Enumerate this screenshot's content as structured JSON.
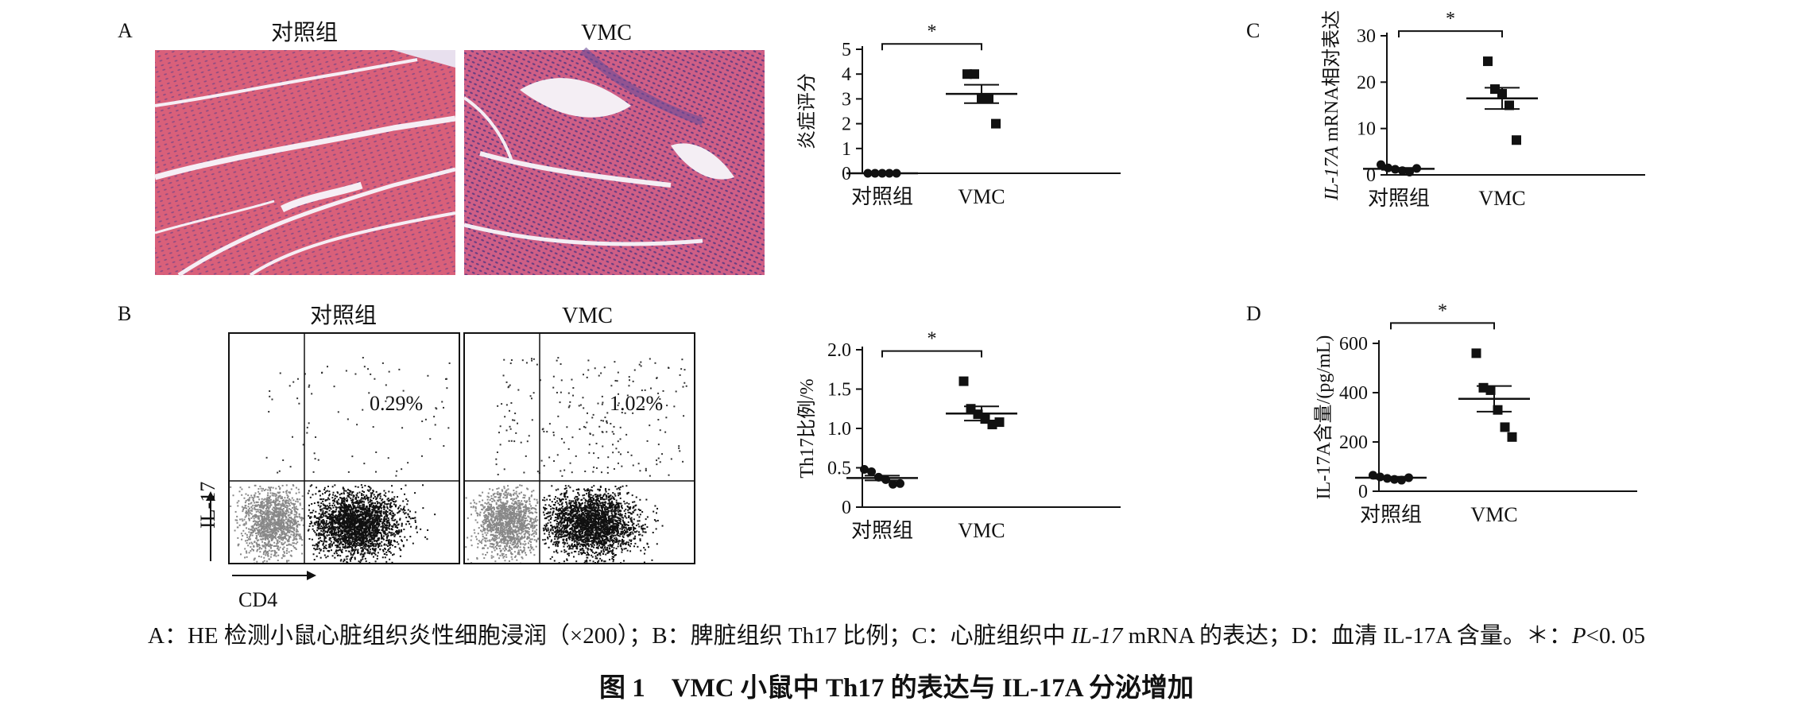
{
  "panel_labels": {
    "a": "A",
    "b": "B",
    "c": "C",
    "d": "D"
  },
  "histology": {
    "left_title": "对照组",
    "right_title": "VMC",
    "colors": {
      "tissue_pink": "#d9607a",
      "nucleus_purple": "#4a3a8a",
      "gap_white": "#f4eef4"
    }
  },
  "flow": {
    "left_title": "对照组",
    "right_title": "VMC",
    "left_percent": "0.29%",
    "right_percent": "1.02%",
    "y_axis_label": "IL-17",
    "x_axis_label": "CD4",
    "colors": {
      "cd4_negative": "#888888",
      "cd4_positive": "#111111"
    }
  },
  "caption": {
    "part1": "A：HE 检测小鼠心脏组织炎性细胞浸润（×200）；B：脾脏组织 Th17 比例；C：心脏组织中 ",
    "gene": "IL-17",
    "part2": " mRNA 的表达；D：血清 IL-17A 含量。＊：",
    "p": "P",
    "part3": "<0. 05"
  },
  "figure_title": "图 1　VMC 小鼠中 Th17 的表达与 IL-17A 分泌增加",
  "chart_data": [
    {
      "id": "A-inflammation-score",
      "type": "scatter",
      "ylabel": "炎症评分",
      "categories": [
        "对照组",
        "VMC"
      ],
      "ylim": [
        0,
        5
      ],
      "yticks": [
        "0",
        "1",
        "2",
        "3",
        "4",
        "5"
      ],
      "significance": "*",
      "series": [
        {
          "values": [
            0,
            0,
            0,
            0,
            0
          ],
          "mean": 0,
          "sem": 0
        },
        {
          "values": [
            4,
            4,
            3,
            3,
            2
          ],
          "mean": 3.2,
          "sem": 0.37
        }
      ]
    },
    {
      "id": "B-th17-ratio",
      "type": "scatter",
      "ylabel": "Th17比例/%",
      "categories": [
        "对照组",
        "VMC"
      ],
      "ylim": [
        0,
        2.0
      ],
      "yticks": [
        "0",
        "0.5",
        "1.0",
        "1.5",
        "2.0"
      ],
      "significance": "*",
      "series": [
        {
          "values": [
            0.48,
            0.45,
            0.38,
            0.35,
            0.29,
            0.3
          ],
          "mean": 0.37,
          "sem": 0.03
        },
        {
          "values": [
            1.6,
            1.25,
            1.18,
            1.12,
            1.05,
            1.08
          ],
          "mean": 1.19,
          "sem": 0.09
        }
      ]
    },
    {
      "id": "C-il17-mrna",
      "type": "scatter",
      "ylabel": "IL-17A mRNA相对表达",
      "categories": [
        "对照组",
        "VMC"
      ],
      "ylim": [
        0,
        30
      ],
      "yticks": [
        "0",
        "10",
        "20",
        "30"
      ],
      "significance": "*",
      "series": [
        {
          "values": [
            2.2,
            1.5,
            1.2,
            0.9,
            0.6,
            1.4
          ],
          "mean": 1.3,
          "sem": 0.2
        },
        {
          "values": [
            24.5,
            18.5,
            17.5,
            15.0,
            7.5
          ],
          "mean": 16.5,
          "sem": 2.3
        }
      ]
    },
    {
      "id": "D-il17a-content",
      "type": "scatter",
      "ylabel": "IL-17A含量/(pg/mL)",
      "categories": [
        "对照组",
        "VMC"
      ],
      "ylim": [
        0,
        600
      ],
      "yticks": [
        "0",
        "200",
        "400",
        "600"
      ],
      "significance": "*",
      "series": [
        {
          "values": [
            65,
            58,
            52,
            48,
            45,
            55
          ],
          "mean": 55,
          "sem": 4
        },
        {
          "values": [
            560,
            420,
            410,
            330,
            260,
            220
          ],
          "mean": 375,
          "sem": 52
        }
      ]
    }
  ]
}
